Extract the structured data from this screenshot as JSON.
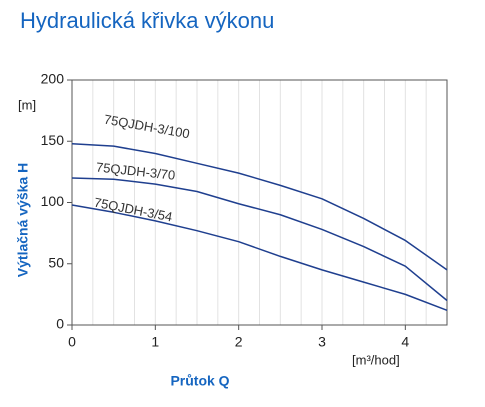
{
  "chart_data": {
    "type": "line",
    "title": "Hydraulická křivka výkonu",
    "x_label": "Průtok Q",
    "y_label": "Výtlačná výška H",
    "y_unit": "[m]",
    "x_unit": "[m³/hod]",
    "x": [
      0,
      0.5,
      1,
      1.5,
      2,
      2.5,
      3,
      3.5,
      4,
      4.5
    ],
    "series": [
      {
        "name": "75QJDH-3/100",
        "color": "#1f3f8f",
        "values": [
          148,
          146,
          140,
          132,
          124,
          114,
          103,
          87,
          69,
          45
        ]
      },
      {
        "name": "75QJDH-3/70",
        "color": "#1f3f8f",
        "values": [
          120,
          119,
          115,
          109,
          99,
          90,
          78,
          64,
          48,
          20
        ]
      },
      {
        "name": "75QJDH-3/54",
        "color": "#1f3f8f",
        "values": [
          98,
          92,
          85,
          77,
          68,
          56,
          45,
          35,
          25,
          12
        ]
      }
    ],
    "xlim": [
      0,
      4.5
    ],
    "ylim": [
      0,
      200
    ],
    "xticks": [
      0,
      1,
      2,
      3,
      4
    ],
    "yticks": [
      0,
      50,
      100,
      150,
      200
    ],
    "xgrid": [
      0.25,
      0.5,
      0.75,
      1,
      1.25,
      1.5,
      1.75,
      2,
      2.25,
      2.5,
      2.75,
      3,
      3.25,
      3.5,
      3.75,
      4,
      4.25
    ]
  }
}
